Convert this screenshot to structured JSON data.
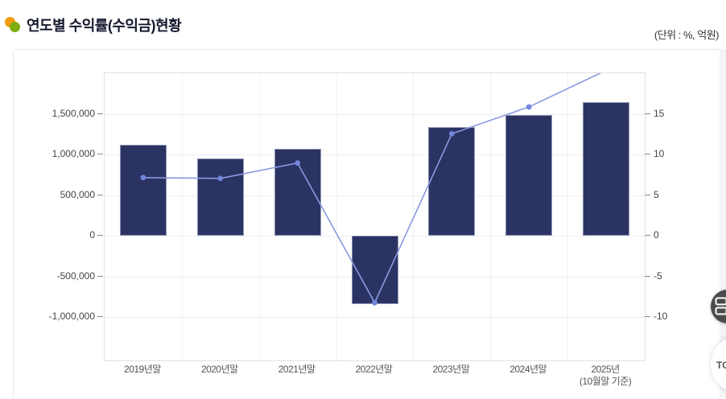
{
  "header": {
    "title": "연도별 수익률(수익금)현황",
    "unit_label": "(단위 : %, 억원)"
  },
  "colors": {
    "bar_fill": "#2b3363",
    "bar_border": "#8d94b3",
    "line": "#8b99e0",
    "point": "#7385db",
    "grid_h": "#ededed",
    "grid_v": "#f1f1f1",
    "plot_border": "#e0e0e0",
    "bullet_orange": "#f39c12",
    "bullet_green": "#7fae10"
  },
  "chart_data": {
    "type": "bar+line",
    "title": "연도별 수익률(수익금)현황",
    "categories": [
      {
        "label": "2019년말"
      },
      {
        "label": "2020년말"
      },
      {
        "label": "2021년말"
      },
      {
        "label": "2022년말"
      },
      {
        "label": "2023년말"
      },
      {
        "label": "2024년말"
      },
      {
        "label": "2025년",
        "sublabel": "(10월말 기준)"
      }
    ],
    "series": [
      {
        "name": "수익금",
        "type": "bar",
        "unit": "억원",
        "values": [
          1120000,
          960000,
          1070000,
          -840000,
          1340000,
          1490000,
          1650000
        ]
      },
      {
        "name": "수익률",
        "type": "line",
        "unit": "%",
        "values": [
          7.2,
          7.1,
          9.0,
          -8.2,
          12.6,
          15.9,
          20.4
        ]
      }
    ],
    "left_axis": {
      "tick_values": [
        1500000,
        1000000,
        500000,
        0,
        -500000,
        -1000000
      ],
      "tick_labels": [
        "1,500,000",
        "1,000,000",
        "500,000",
        "0",
        "-500,000",
        "-1,000,000"
      ]
    },
    "right_axis": {
      "tick_values": [
        15,
        10,
        5,
        0,
        -5,
        -10
      ],
      "tick_labels": [
        "15",
        "10",
        "5",
        "0",
        "-5",
        "-10"
      ]
    },
    "ylim_left": [
      -1530000,
      2005000
    ],
    "ylim_right": [
      -15.3,
      20.05
    ],
    "grid": true,
    "legend_position": "none"
  },
  "floating": {
    "top_button_label": "TOP"
  }
}
